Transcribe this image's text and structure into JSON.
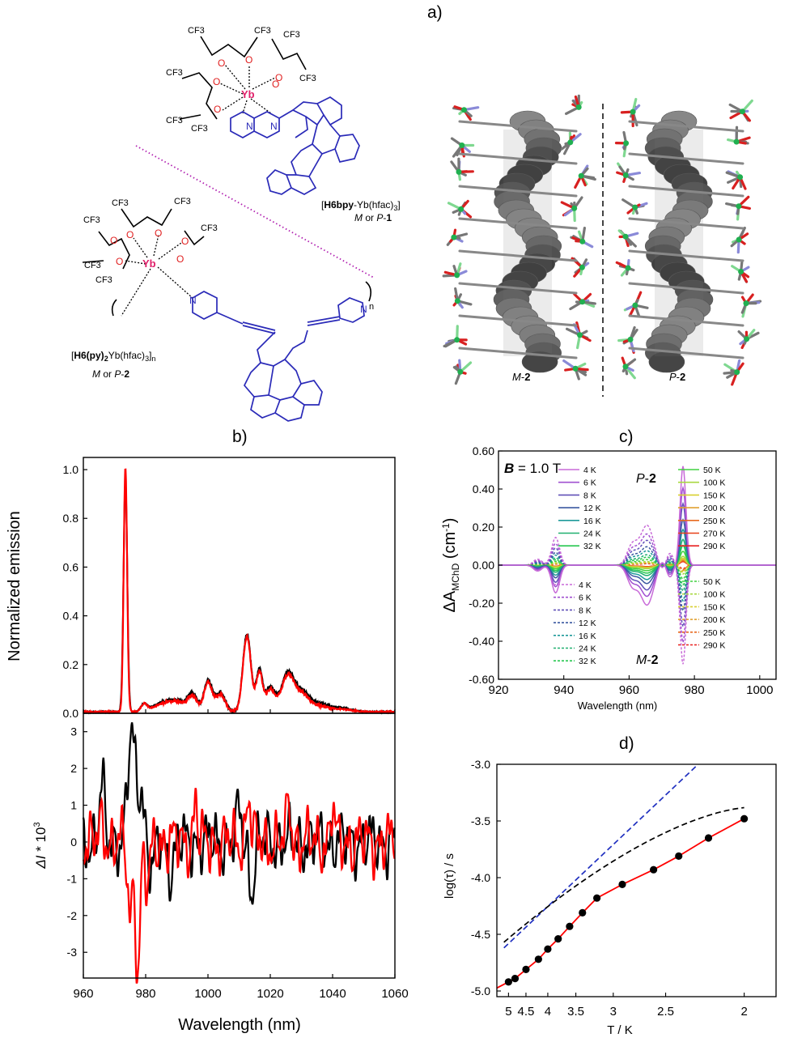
{
  "panel_labels": {
    "a": "a)",
    "b": "b)",
    "c": "c)",
    "d": "d)"
  },
  "chemistry": {
    "compound1_name": {
      "bracket_open": "[",
      "bold": "H6bpy",
      "rest": "-Yb(hfac)",
      "sub": "3",
      "bracket_close": "]"
    },
    "compound1_id": {
      "italic": "M",
      "text": " or ",
      "italic2": "P",
      "dash": "-",
      "bold": "1"
    },
    "compound2_name": {
      "bracket_open": "[",
      "bold": "H6(py)",
      "boldsub": "2",
      "rest": "Yb(hfac)",
      "sub": "3",
      "tail": "]",
      "n": "n"
    },
    "compound2_id": {
      "italic": "M",
      "text": " or ",
      "italic2": "P",
      "dash": "-",
      "bold": "2"
    },
    "cf3": "CF3",
    "metal": "Yb",
    "o": "O",
    "n_atom": "N",
    "polymer_n": "n"
  },
  "crystal": {
    "left_label": {
      "italic": "M",
      "dash": "-",
      "bold": "2"
    },
    "right_label": {
      "italic": "P",
      "dash": "-",
      "bold": "2"
    }
  },
  "chart_data": [
    {
      "id": "b-top",
      "type": "line",
      "ylabel": "Normalized emission",
      "xlim": [
        960,
        1060
      ],
      "ylim": [
        0,
        1.05
      ],
      "yticks": [
        "0.0",
        "0.2",
        "0.4",
        "0.6",
        "0.8",
        "1.0"
      ],
      "series": [
        {
          "color": "#000000",
          "peaks": [
            [
              973.5,
              0.95,
              0.6
            ],
            [
              979.5,
              0.03,
              1.0
            ],
            [
              985,
              0.03,
              3.0
            ],
            [
              990,
              0.04,
              3.0
            ],
            [
              995,
              0.07,
              1.5
            ],
            [
              1000,
              0.13,
              1.3
            ],
            [
              1004,
              0.08,
              1.5
            ],
            [
              1012.5,
              0.32,
              1.3
            ],
            [
              1016.5,
              0.17,
              1.0
            ],
            [
              1020,
              0.1,
              1.5
            ],
            [
              1025.5,
              0.15,
              2.0
            ],
            [
              1030,
              0.08,
              2.5
            ],
            [
              1036,
              0.03,
              3.0
            ],
            [
              1043,
              0.015,
              3.0
            ]
          ]
        },
        {
          "color": "#ff0000",
          "peaks": [
            [
              973.5,
              1.0,
              0.55
            ],
            [
              979.5,
              0.03,
              1.0
            ],
            [
              985,
              0.025,
              3.0
            ],
            [
              990,
              0.035,
              3.0
            ],
            [
              995,
              0.06,
              1.5
            ],
            [
              1000,
              0.12,
              1.3
            ],
            [
              1004,
              0.07,
              1.5
            ],
            [
              1012.5,
              0.31,
              1.3
            ],
            [
              1016.5,
              0.16,
              1.0
            ],
            [
              1020,
              0.09,
              1.5
            ],
            [
              1025.5,
              0.14,
              2.0
            ],
            [
              1030,
              0.07,
              2.5
            ],
            [
              1036,
              0.02,
              3.0
            ],
            [
              1043,
              0.01,
              3.0
            ]
          ]
        }
      ]
    },
    {
      "id": "b-bottom",
      "type": "line",
      "xlabel": "Wavelength (nm)",
      "ylabel_italic": "ΔI",
      "ylabel_rest": " * 10",
      "ylabel_sup": "3",
      "xlim": [
        960,
        1060
      ],
      "ylim": [
        -3.7,
        3.5
      ],
      "xticks": [
        "960",
        "980",
        "1000",
        "1020",
        "1040",
        "1060"
      ],
      "yticks": [
        "-3",
        "-2",
        "-1",
        "0",
        "1",
        "2",
        "3"
      ],
      "series": [
        {
          "color": "#000000",
          "features": [
            [
              966,
              1.5,
              0.8
            ],
            [
              975.5,
              2.9,
              1.2
            ],
            [
              978.5,
              1.4,
              1.0
            ],
            [
              982,
              -0.8,
              1.0
            ],
            [
              988,
              -0.7,
              1.0
            ],
            [
              1014,
              -1.3,
              0.8
            ],
            [
              1010,
              0.8,
              0.8
            ]
          ]
        },
        {
          "color": "#ff0000",
          "features": [
            [
              966,
              0.5,
              0.8
            ],
            [
              975,
              -2.0,
              0.8
            ],
            [
              977.5,
              -3.4,
              0.7
            ],
            [
              980.5,
              -1.2,
              0.9
            ],
            [
              996,
              1.1,
              0.6
            ],
            [
              1013,
              1.3,
              0.7
            ],
            [
              1026,
              1.2,
              0.6
            ],
            [
              1040,
              1.0,
              0.6
            ]
          ]
        }
      ]
    },
    {
      "id": "c",
      "type": "line",
      "title_italic": "B",
      "title_rest": " = 1.0 T",
      "xlabel": "Wavelength (nm)",
      "ylabel_main": "ΔA",
      "ylabel_sub": "MChD",
      "ylabel_unit": " (cm",
      "ylabel_sup": "-1",
      "ylabel_close": ")",
      "xlim": [
        920,
        1005
      ],
      "ylim": [
        -0.6,
        0.6
      ],
      "xticks": [
        "920",
        "940",
        "960",
        "980",
        "1000"
      ],
      "yticks": [
        "-0.60",
        "-0.40",
        "-0.20",
        "0.00",
        "0.20",
        "0.40",
        "0.60"
      ],
      "annot_top": {
        "italic": "P",
        "dash": "-",
        "bold": "2"
      },
      "annot_bottom": {
        "italic": "M",
        "dash": "-",
        "bold": "2"
      },
      "legend_solid_left": [
        {
          "name": "4 K",
          "color": "#c86ad8",
          "amp": 1.0
        },
        {
          "name": "6 K",
          "color": "#a050d0",
          "amp": 0.78
        },
        {
          "name": "8 K",
          "color": "#6050b8",
          "amp": 0.62
        },
        {
          "name": "12 K",
          "color": "#3a58a0",
          "amp": 0.46
        },
        {
          "name": "16 K",
          "color": "#1e9a9a",
          "amp": 0.36
        },
        {
          "name": "24 K",
          "color": "#20b070",
          "amp": 0.26
        },
        {
          "name": "32 K",
          "color": "#28c850",
          "amp": 0.2
        }
      ],
      "legend_solid_right": [
        {
          "name": "50 K",
          "color": "#40d040",
          "amp": 0.14
        },
        {
          "name": "100 K",
          "color": "#a8d840",
          "amp": 0.09
        },
        {
          "name": "150 K",
          "color": "#d8d030",
          "amp": 0.07
        },
        {
          "name": "200 K",
          "color": "#e0a030",
          "amp": 0.055
        },
        {
          "name": "250 K",
          "color": "#e86a20",
          "amp": 0.045
        },
        {
          "name": "270 K",
          "color": "#e84018",
          "amp": 0.04
        },
        {
          "name": "290 K",
          "color": "#e82020",
          "amp": 0.035
        }
      ],
      "legend_dashed_left": [
        {
          "name": "4 K",
          "color": "#c86ad8",
          "amp": 1.0
        },
        {
          "name": "6 K",
          "color": "#a050d0",
          "amp": 0.78
        },
        {
          "name": "8 K",
          "color": "#6050b8",
          "amp": 0.62
        },
        {
          "name": "12 K",
          "color": "#3a58a0",
          "amp": 0.46
        },
        {
          "name": "16 K",
          "color": "#1e9a9a",
          "amp": 0.36
        },
        {
          "name": "24 K",
          "color": "#20b070",
          "amp": 0.26
        },
        {
          "name": "32 K",
          "color": "#28c850",
          "amp": 0.2
        }
      ],
      "legend_dashed_right": [
        {
          "name": "50 K",
          "color": "#40d040",
          "amp": 0.14
        },
        {
          "name": "100 K",
          "color": "#a8d840",
          "amp": 0.09
        },
        {
          "name": "150 K",
          "color": "#d8d030",
          "amp": 0.07
        },
        {
          "name": "200 K",
          "color": "#e0a030",
          "amp": 0.055
        },
        {
          "name": "250 K",
          "color": "#e86a20",
          "amp": 0.045
        },
        {
          "name": "290 K",
          "color": "#e82020",
          "amp": 0.035
        }
      ],
      "peak_4K": 0.52,
      "features": [
        [
          976.5,
          1.0,
          0.9
        ],
        [
          965.5,
          -0.4,
          2.0
        ],
        [
          961,
          -0.2,
          1.6
        ],
        [
          937.5,
          -0.28,
          1.2
        ],
        [
          932,
          -0.06,
          1.3
        ],
        [
          972.5,
          -0.12,
          1.0
        ],
        [
          970,
          0.06,
          1.0
        ]
      ]
    },
    {
      "id": "d",
      "type": "scatter",
      "xlabel": "T / K",
      "ylabel": "log(τ) / s",
      "x_axis": "reciprocal temperature (tick labels show T)",
      "xlim_T": [
        5.4,
        1.85
      ],
      "ylim": [
        -5.05,
        -3.0
      ],
      "xticks": [
        "5",
        "4.5",
        "4",
        "3.5",
        "3",
        "2.5",
        "2"
      ],
      "yticks": [
        "-5.0",
        "-4.5",
        "-4.0",
        "-3.5",
        "-3.0"
      ],
      "points": [
        {
          "T": 5.0,
          "y": -4.92
        },
        {
          "T": 4.8,
          "y": -4.89
        },
        {
          "T": 4.5,
          "y": -4.81
        },
        {
          "T": 4.2,
          "y": -4.72
        },
        {
          "T": 4.0,
          "y": -4.63
        },
        {
          "T": 3.8,
          "y": -4.54
        },
        {
          "T": 3.6,
          "y": -4.43
        },
        {
          "T": 3.4,
          "y": -4.31
        },
        {
          "T": 3.2,
          "y": -4.18
        },
        {
          "T": 2.9,
          "y": -4.06
        },
        {
          "T": 2.6,
          "y": -3.93
        },
        {
          "T": 2.4,
          "y": -3.81
        },
        {
          "T": 2.2,
          "y": -3.65
        },
        {
          "T": 2.0,
          "y": -3.48
        }
      ],
      "fit": {
        "color": "#ff0000"
      },
      "dashed_blue": {
        "color": "#2030c0",
        "from": {
          "T": 5.15,
          "y": -4.62
        },
        "to": {
          "T": 2.25,
          "y": -2.98
        }
      },
      "dashed_black": {
        "color": "#000000"
      },
      "marker_color": "#000000"
    }
  ]
}
